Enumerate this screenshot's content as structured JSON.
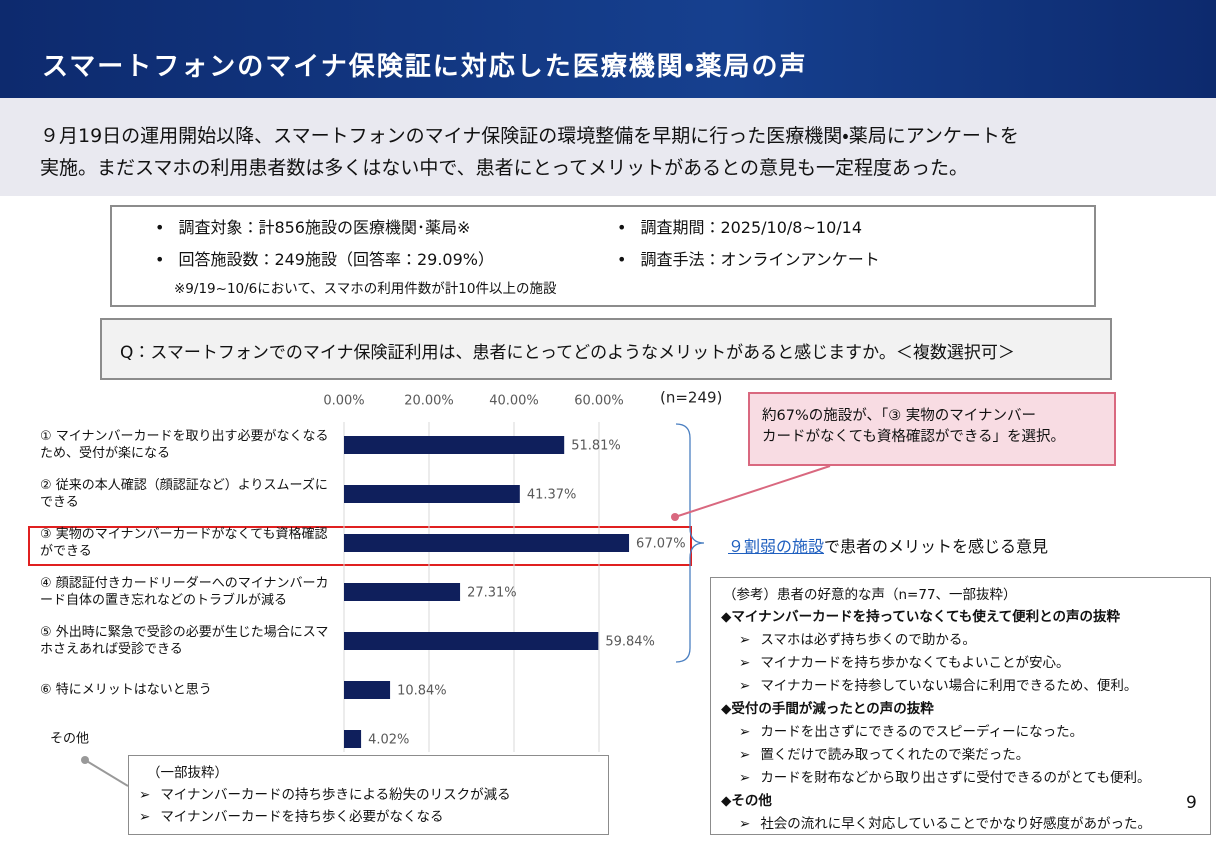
{
  "header": {
    "title": "スマートフォンのマイナ保険証に対応した医療機関・薬局の声"
  },
  "lead": [
    "９月19日の運用開始以降、スマートフォンのマイナ保険証の環境整備を早期に行った医療機関・薬局にアンケートを",
    "実施。まだスマホの利用患者数は多くはない中で、患者にとってメリットがあるとの意見も一定程度あった。"
  ],
  "survey": {
    "items": [
      "調査対象：計856施設の医療機関･薬局※",
      "調査期間：2025/10/8~10/14",
      "回答施設数：249施設（回答率：29.09%）",
      "調査手法：オンラインアンケート"
    ],
    "note": "※9/19~10/6において、スマホの利用件数が計10件以上の施設"
  },
  "question": "Q：スマートフォンでのマイナ保険証利用は、患者にとってどのようなメリットがあると感じますか。＜複数選択可＞",
  "chart_data": {
    "type": "bar",
    "orientation": "horizontal",
    "sample_label": "(n=249)",
    "categories": [
      "① マイナンバーカードを取り出す必要がなくなるため、受付が楽になる",
      "② 従来の本人確認（顔認証など）よりスムーズにできる",
      "③ 実物のマイナンバーカードがなくても資格確認ができる",
      "④ 顔認証付きカードリーダーへのマイナンバーカード自体の置き忘れなどのトラブルが減る",
      "⑤ 外出時に緊急で受診の必要が生じた場合にスマホさえあれば受診できる",
      "⑥ 特にメリットはないと思う",
      "その他"
    ],
    "values": [
      51.81,
      41.37,
      67.07,
      27.31,
      59.84,
      10.84,
      4.02
    ],
    "value_labels": [
      "51.81%",
      "41.37%",
      "67.07%",
      "27.31%",
      "59.84%",
      "10.84%",
      "4.02%"
    ],
    "color": "#0f1f5c",
    "xlim": [
      0,
      70
    ],
    "xticks": [
      {
        "value": 0,
        "label": "0.00%"
      },
      {
        "value": 20,
        "label": "20.00%"
      },
      {
        "value": 40,
        "label": "40.00%"
      },
      {
        "value": 60,
        "label": "60.00%"
      }
    ],
    "grid": true
  },
  "callout": [
    "約67%の施設が、「③ 実物のマイナンバー",
    "カードがなくても資格確認ができる」を選択。"
  ],
  "brace_note": {
    "link": "９割弱の施設",
    "text": "で患者のメリットを感じる意見"
  },
  "reference": {
    "title": "（参考）患者の好意的な声（n=77、一部抜粋）",
    "sections": [
      {
        "heading": "◆マイナンバーカードを持っていなくても使えて便利との声の抜粋",
        "items": [
          "スマホは必ず持ち歩くので助かる。",
          "マイナカードを持ち歩かなくてもよいことが安心。",
          "マイナカードを持参していない場合に利用できるため、便利。"
        ]
      },
      {
        "heading": "◆受付の手間が減ったとの声の抜粋",
        "items": [
          "カードを出さずにできるのでスピーディーになった。",
          "置くだけで読み取ってくれたので楽だった。",
          "カードを財布などから取り出さずに受付できるのがとても便利。"
        ]
      },
      {
        "heading": "◆その他",
        "items": [
          "社会の流れに早く対応していることでかなり好感度があがった。"
        ]
      }
    ]
  },
  "other_box": {
    "title": "（一部抜粋）",
    "items": [
      "マイナンバーカードの持ち歩きによる紛失のリスクが減る",
      "マイナンバーカードを持ち歩く必要がなくなる"
    ]
  },
  "page_number": "9"
}
